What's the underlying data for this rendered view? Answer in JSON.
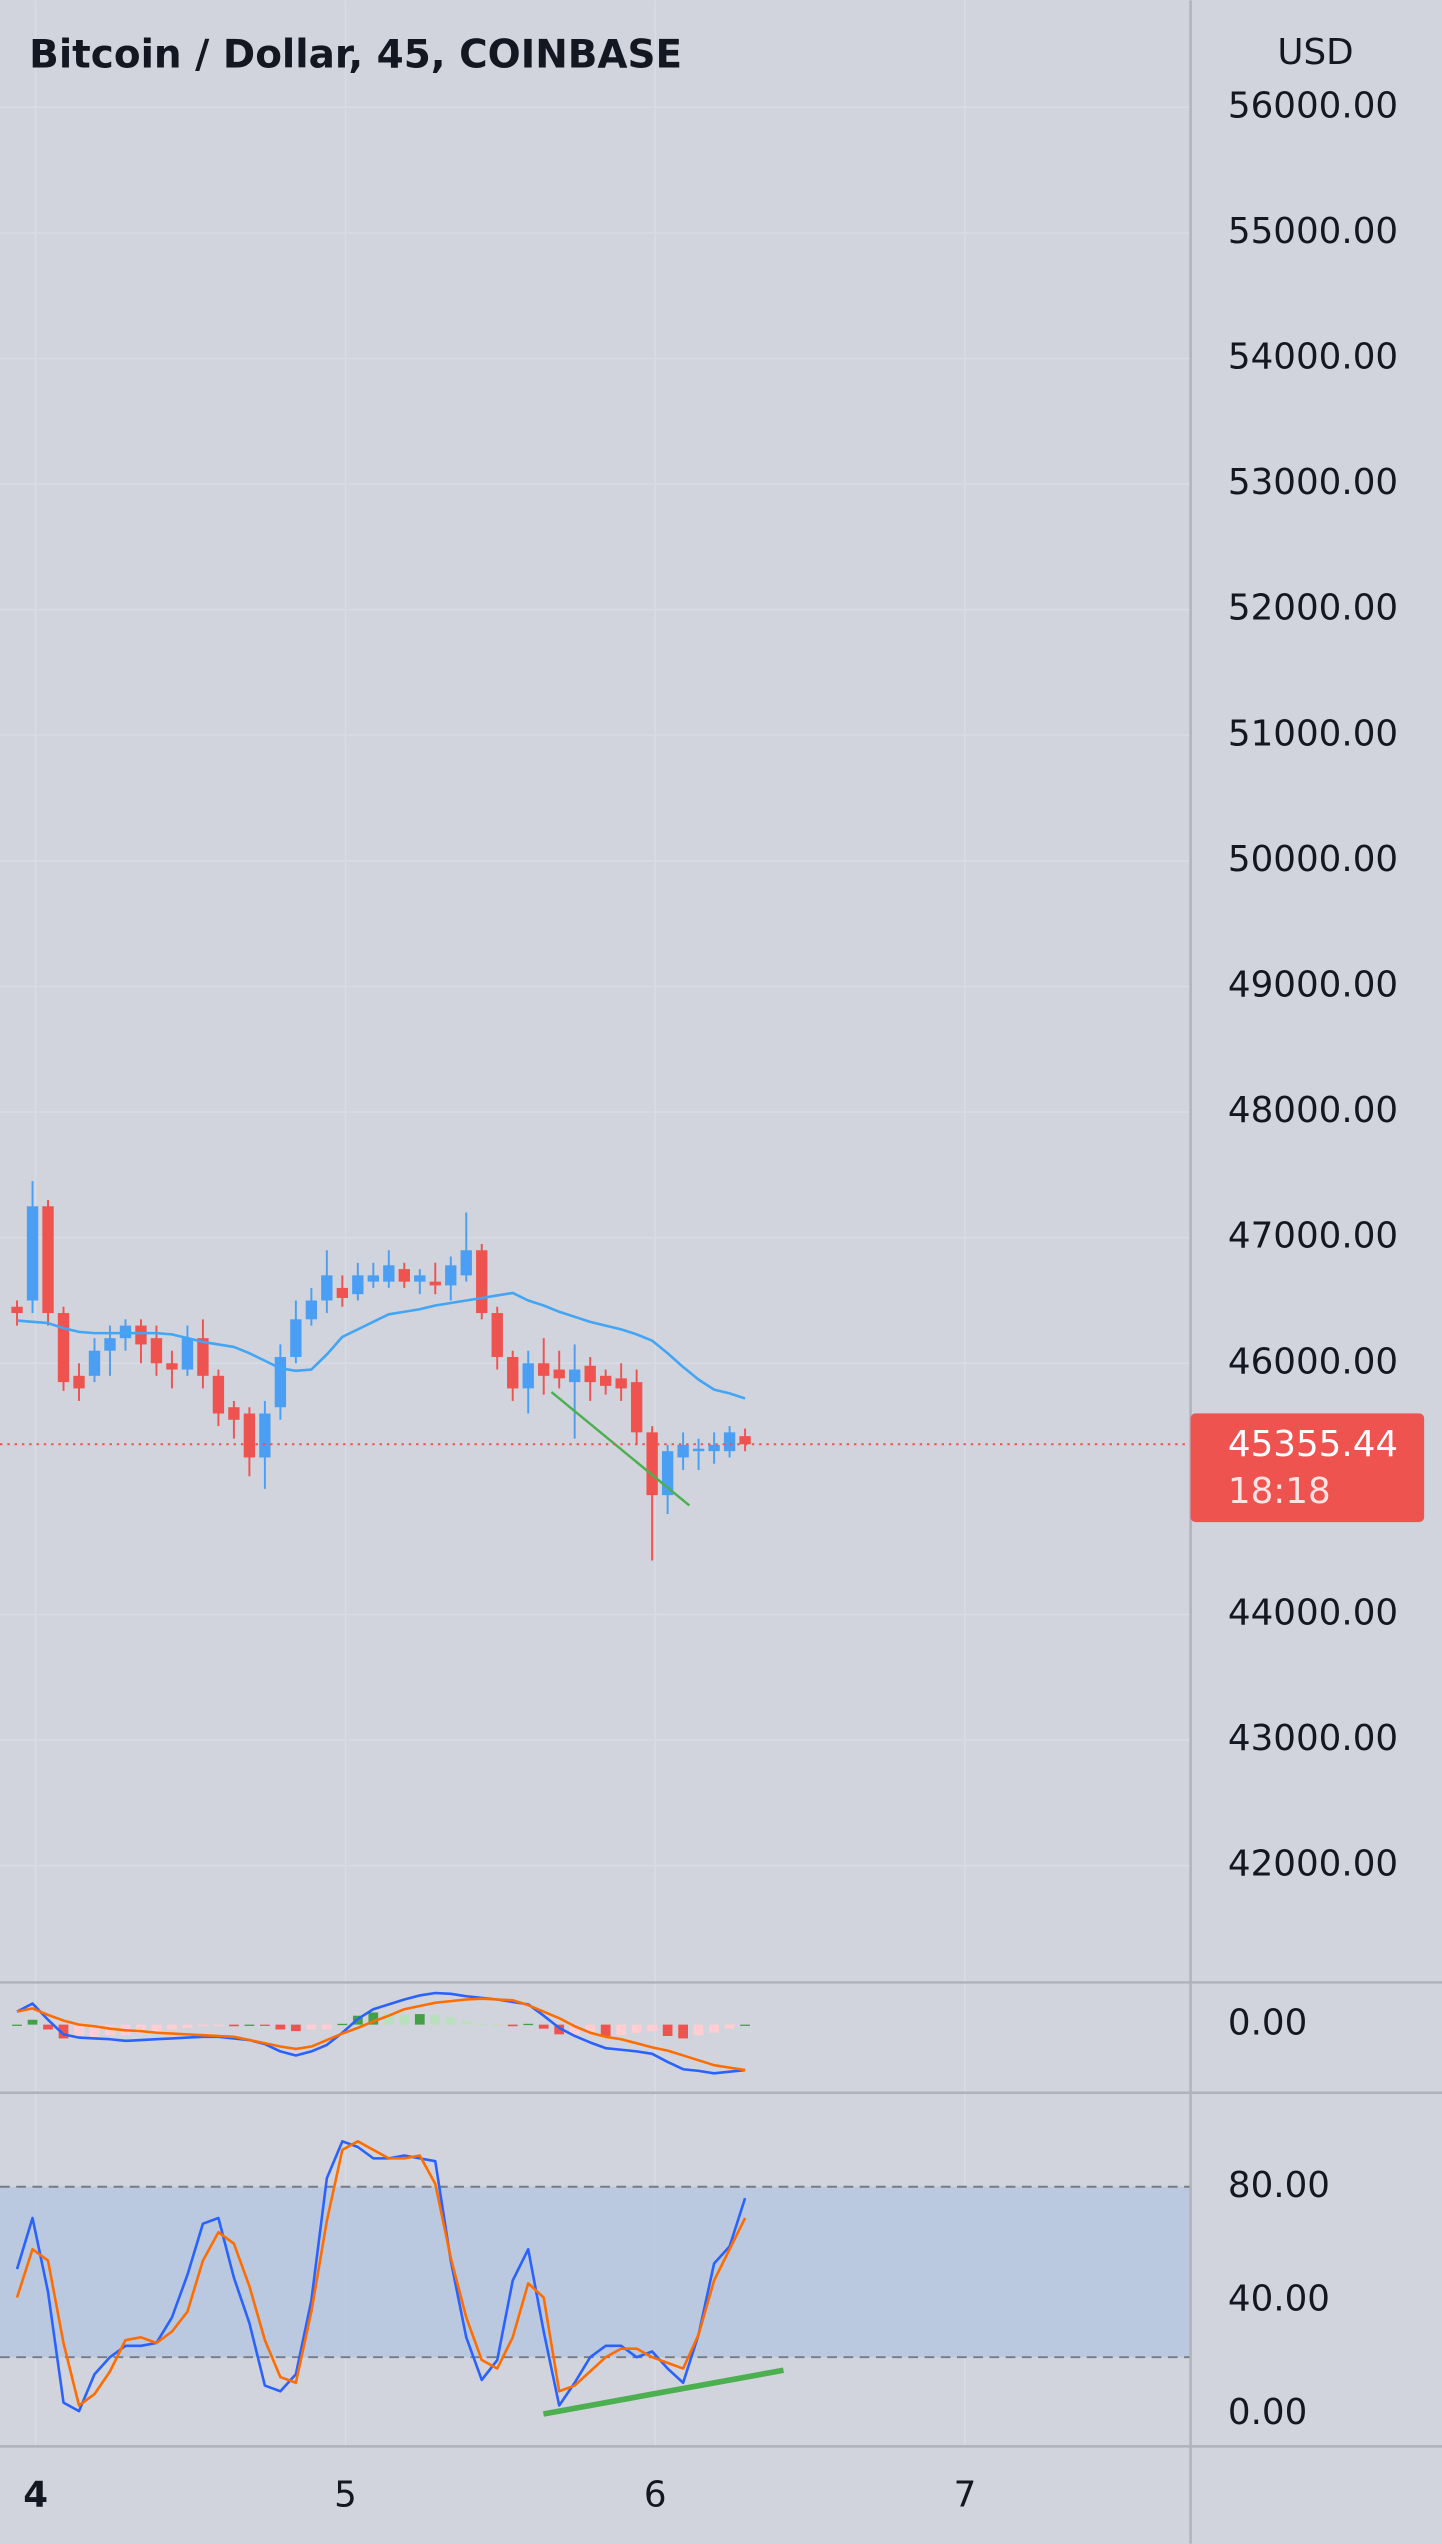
{
  "chart_data": [
    {
      "type": "candlestick",
      "title": "Bitcoin / Dollar, 45, COINBASE",
      "y_axis_label": "USD",
      "x": [
        3.94,
        3.99,
        4.04,
        4.09,
        4.14,
        4.19,
        4.24,
        4.29,
        4.34,
        4.39,
        4.44,
        4.49,
        4.54,
        4.59,
        4.64,
        4.69,
        4.74,
        4.79,
        4.84,
        4.89,
        4.94,
        4.99,
        5.04,
        5.09,
        5.14,
        5.19,
        5.24,
        5.29,
        5.34,
        5.39,
        5.44,
        5.49,
        5.54,
        5.59,
        5.64,
        5.69,
        5.74,
        5.79,
        5.84,
        5.89,
        5.94,
        5.99,
        6.04,
        6.09,
        6.14,
        6.19,
        6.24,
        6.29
      ],
      "open": [
        46450,
        46500,
        47250,
        46400,
        45900,
        45900,
        46100,
        46200,
        46300,
        46200,
        46000,
        45950,
        46200,
        45900,
        45650,
        45600,
        45250,
        45650,
        46050,
        46350,
        46500,
        46600,
        46550,
        46650,
        46650,
        46750,
        46650,
        46650,
        46620,
        46700,
        46900,
        46400,
        46050,
        45800,
        46000,
        45950,
        45850,
        45980,
        45900,
        45880,
        45850,
        45450,
        44950,
        45250,
        45300,
        45300,
        45300,
        45420
      ],
      "high": [
        46500,
        47450,
        47300,
        46450,
        46000,
        46200,
        46300,
        46350,
        46350,
        46300,
        46100,
        46300,
        46350,
        45950,
        45700,
        45650,
        45700,
        46150,
        46500,
        46600,
        46900,
        46700,
        46800,
        46800,
        46900,
        46800,
        46750,
        46800,
        46850,
        47200,
        46950,
        46450,
        46100,
        46100,
        46200,
        46100,
        46150,
        46050,
        45950,
        46000,
        45950,
        45500,
        45350,
        45450,
        45400,
        45450,
        45500,
        45480
      ],
      "low": [
        46300,
        46400,
        46300,
        45780,
        45700,
        45850,
        45900,
        46100,
        46000,
        45900,
        45800,
        45900,
        45800,
        45500,
        45400,
        45100,
        45000,
        45550,
        46000,
        46300,
        46400,
        46450,
        46500,
        46600,
        46600,
        46600,
        46550,
        46550,
        46500,
        46650,
        46350,
        45950,
        45700,
        45600,
        45750,
        45800,
        45400,
        45700,
        45750,
        45700,
        45350,
        44430,
        44800,
        45150,
        45150,
        45200,
        45250,
        45300
      ],
      "close": [
        46400,
        47250,
        46400,
        45850,
        45800,
        46100,
        46200,
        46300,
        46150,
        46000,
        45950,
        46200,
        45900,
        45600,
        45550,
        45250,
        45600,
        46050,
        46350,
        46500,
        46700,
        46520,
        46700,
        46700,
        46780,
        46650,
        46700,
        46620,
        46780,
        46900,
        46400,
        46050,
        45800,
        46000,
        45900,
        45880,
        45950,
        45850,
        45820,
        45800,
        45450,
        44950,
        45300,
        45350,
        45320,
        45350,
        45450,
        45355
      ],
      "up_color": "#4a9ff5",
      "down_color": "#ef5350",
      "lines": [
        {
          "color": "#42a5f5",
          "values": [
            46340,
            46330,
            46320,
            46280,
            46250,
            46240,
            46240,
            46240,
            46240,
            46240,
            46230,
            46200,
            46170,
            46150,
            46130,
            46080,
            46020,
            45960,
            45940,
            45950,
            46070,
            46210,
            46270,
            46330,
            46390,
            46410,
            46430,
            46460,
            46480,
            46500,
            46520,
            46540,
            46560,
            46500,
            46460,
            46410,
            46370,
            46330,
            46300,
            46270,
            46230,
            46180,
            46080,
            45970,
            45870,
            45790,
            45760,
            45720
          ]
        }
      ],
      "trendline": {
        "x": [
          5.665,
          6.11
        ],
        "values": [
          45771,
          44868
        ],
        "color": "#4caf50"
      },
      "last_price": 45355.44,
      "countdown": "18:18",
      "last_price_color": "#ef5350",
      "xlim": [
        3.885,
        7.728
      ],
      "ylim": [
        41070,
        56852
      ],
      "yticks": [
        {
          "value": 56000,
          "label": "56000.00"
        },
        {
          "value": 55000,
          "label": "55000.00"
        },
        {
          "value": 54000,
          "label": "54000.00"
        },
        {
          "value": 53000,
          "label": "53000.00"
        },
        {
          "value": 52000,
          "label": "52000.00"
        },
        {
          "value": 51000,
          "label": "51000.00"
        },
        {
          "value": 50000,
          "label": "50000.00"
        },
        {
          "value": 49000,
          "label": "49000.00"
        },
        {
          "value": 48000,
          "label": "48000.00"
        },
        {
          "value": 47000,
          "label": "47000.00"
        },
        {
          "value": 46000,
          "label": "46000.00"
        },
        {
          "value": 44000,
          "label": "44000.00"
        },
        {
          "value": 43000,
          "label": "43000.00"
        },
        {
          "value": 42000,
          "label": "42000.00"
        }
      ],
      "grid": true
    },
    {
      "type": "macd",
      "x": [
        3.94,
        3.99,
        4.04,
        4.09,
        4.14,
        4.19,
        4.24,
        4.29,
        4.34,
        4.39,
        4.44,
        4.49,
        4.54,
        4.59,
        4.64,
        4.69,
        4.74,
        4.79,
        4.84,
        4.89,
        4.94,
        4.99,
        5.04,
        5.09,
        5.14,
        5.19,
        5.24,
        5.29,
        5.34,
        5.39,
        5.44,
        5.49,
        5.54,
        5.59,
        5.64,
        5.69,
        5.74,
        5.79,
        5.84,
        5.89,
        5.94,
        5.99,
        6.04,
        6.09,
        6.14,
        6.19,
        6.24,
        6.29
      ],
      "series": [
        {
          "color": "#2962ff",
          "values": [
            80,
            130,
            30,
            -60,
            -80,
            -85,
            -90,
            -100,
            -95,
            -90,
            -85,
            -80,
            -75,
            -75,
            -85,
            -95,
            -120,
            -165,
            -190,
            -165,
            -125,
            -50,
            35,
            95,
            125,
            155,
            180,
            195,
            190,
            175,
            165,
            155,
            140,
            125,
            55,
            -20,
            -70,
            -110,
            -145,
            -155,
            -165,
            -180,
            -230,
            -275,
            -285,
            -300,
            -290,
            -280
          ]
        },
        {
          "color": "#ff6d00",
          "values": [
            80,
            100,
            60,
            25,
            0,
            -10,
            -25,
            -35,
            -40,
            -50,
            -55,
            -60,
            -65,
            -70,
            -75,
            -95,
            -115,
            -135,
            -150,
            -135,
            -95,
            -55,
            -20,
            20,
            55,
            95,
            115,
            135,
            145,
            155,
            160,
            155,
            150,
            120,
            80,
            40,
            -10,
            -50,
            -75,
            -90,
            -115,
            -140,
            -160,
            -190,
            -220,
            -250,
            -265,
            -280
          ]
        }
      ],
      "histogram": [
        0,
        30,
        -30,
        -85,
        -80,
        -75,
        -65,
        -65,
        -55,
        -40,
        -30,
        -20,
        -10,
        -5,
        -10,
        0,
        -5,
        -30,
        -40,
        -30,
        -30,
        5,
        55,
        75,
        70,
        60,
        65,
        60,
        45,
        20,
        5,
        0,
        -10,
        5,
        -25,
        -60,
        -60,
        -60,
        -70,
        -65,
        -50,
        -40,
        -70,
        -85,
        -65,
        -50,
        -25,
        0
      ],
      "histogram_colors": [
        "#43a047",
        "#b9e0bc",
        "#ffcdd2",
        "#ef5350"
      ],
      "xlim": [
        3.885,
        7.728
      ],
      "ylim": [
        -420,
        260
      ],
      "yticks": [
        {
          "value": 0,
          "label": "0.00"
        }
      ]
    },
    {
      "type": "stochastic",
      "x": [
        3.94,
        3.99,
        4.04,
        4.09,
        4.14,
        4.19,
        4.24,
        4.29,
        4.34,
        4.39,
        4.44,
        4.49,
        4.54,
        4.59,
        4.64,
        4.69,
        4.74,
        4.79,
        4.84,
        4.89,
        4.94,
        4.99,
        5.04,
        5.09,
        5.14,
        5.19,
        5.24,
        5.29,
        5.34,
        5.39,
        5.44,
        5.49,
        5.54,
        5.59,
        5.64,
        5.69,
        5.74,
        5.79,
        5.84,
        5.89,
        5.94,
        5.99,
        6.04,
        6.09,
        6.14,
        6.19,
        6.24,
        6.29
      ],
      "series": [
        {
          "color": "#2962ff",
          "values": [
            51,
            69,
            43,
            4,
            1,
            14,
            20,
            24,
            24,
            25,
            34,
            49,
            67,
            69,
            48,
            32,
            10,
            8,
            14,
            40,
            83,
            96,
            94,
            90,
            90,
            91,
            90,
            89,
            54,
            27,
            12,
            19,
            47,
            58,
            29,
            3,
            11,
            20,
            24,
            24,
            20,
            22,
            16,
            11,
            28,
            53,
            59,
            76
          ]
        },
        {
          "color": "#ff6d00",
          "values": [
            41,
            58,
            54,
            25,
            3,
            7,
            15,
            26,
            27,
            25,
            29,
            36,
            54,
            64,
            60,
            45,
            26,
            13,
            11,
            36,
            68,
            93,
            96,
            93,
            90,
            90,
            91,
            81,
            55,
            34,
            19,
            16,
            27,
            46,
            41,
            8,
            10,
            15,
            20,
            23,
            23,
            20,
            18,
            16,
            28,
            47,
            58,
            69
          ]
        }
      ],
      "band": [
        20,
        80
      ],
      "band_color": "#b4c6e0",
      "trendline": {
        "x": [
          5.639,
          6.414
        ],
        "values": [
          0,
          15.4
        ],
        "color": "#4caf50"
      },
      "xlim": [
        3.885,
        7.728
      ],
      "ylim": [
        -11.4,
        113.1
      ],
      "yticks": [
        {
          "value": 80,
          "label": "80.00"
        },
        {
          "value": 40,
          "label": "40.00"
        },
        {
          "value": 0,
          "label": "0.00"
        }
      ],
      "xticks": [
        4,
        5,
        6,
        7
      ],
      "xtick_bold": [
        true,
        false,
        false,
        false
      ]
    }
  ]
}
